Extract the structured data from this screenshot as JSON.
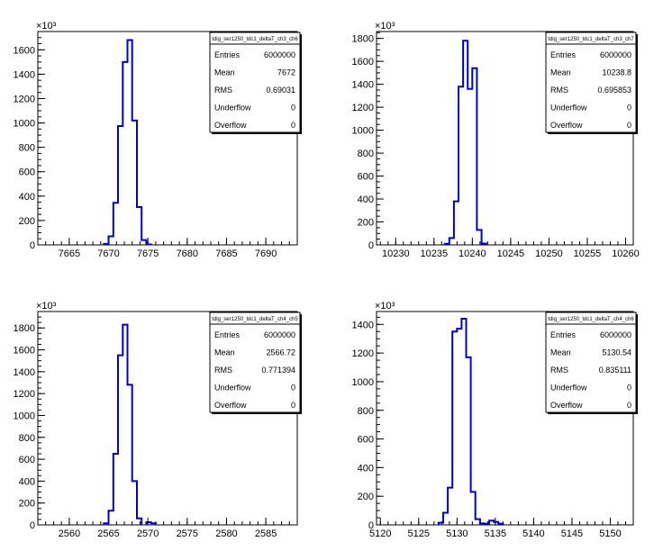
{
  "chart_data": [
    {
      "type": "bar",
      "title": "tdig_ser1250_tdc1_deltaT_ch3_ch6",
      "xlim": [
        7661,
        7694
      ],
      "ylim": [
        0,
        1750
      ],
      "y_exponent": "×10³",
      "xticks": [
        "7665",
        "7670",
        "7675",
        "7680",
        "7685",
        "7690"
      ],
      "yticks": [
        "0",
        "200",
        "400",
        "600",
        "800",
        "1000",
        "1200",
        "1400",
        "1600"
      ],
      "bins": [
        [
          7669.4,
          8
        ],
        [
          7670.0,
          70
        ],
        [
          7670.6,
          345
        ],
        [
          7671.2,
          975
        ],
        [
          7671.8,
          1500
        ],
        [
          7672.4,
          1680
        ],
        [
          7673.0,
          1020
        ],
        [
          7673.6,
          310
        ],
        [
          7674.2,
          40
        ],
        [
          7674.8,
          4
        ]
      ],
      "stats": {
        "Entries": "6000000",
        "Mean": "7672",
        "RMS": "0.69031",
        "Underflow": "0",
        "Overflow": "0"
      }
    },
    {
      "type": "bar",
      "title": "tdig_ser1250_tdc1_deltaT_ch3_ch7",
      "xlim": [
        10227.5,
        10261
      ],
      "ylim": [
        0,
        1860
      ],
      "y_exponent": "×10³",
      "xticks": [
        "10230",
        "10235",
        "10240",
        "10245",
        "10250",
        "10255",
        "10260"
      ],
      "yticks": [
        "0",
        "200",
        "400",
        "600",
        "800",
        "1000",
        "1200",
        "1400",
        "1600",
        "1800"
      ],
      "bins": [
        [
          10236.4,
          10
        ],
        [
          10237.0,
          60
        ],
        [
          10237.6,
          380
        ],
        [
          10238.2,
          1380
        ],
        [
          10238.8,
          1780
        ],
        [
          10239.4,
          1360
        ],
        [
          10240.0,
          1540
        ],
        [
          10240.6,
          130
        ],
        [
          10241.2,
          12
        ]
      ],
      "stats": {
        "Entries": "6000000",
        "Mean": "10238.8",
        "RMS": "0.695853",
        "Underflow": "0",
        "Overflow": "0"
      }
    },
    {
      "type": "bar",
      "title": "tdig_ser1250_tdc1_deltaT_ch4_ch5",
      "xlim": [
        2556,
        2589
      ],
      "ylim": [
        0,
        1950
      ],
      "y_exponent": "×10³",
      "xticks": [
        "2560",
        "2565",
        "2570",
        "2575",
        "2580",
        "2585"
      ],
      "yticks": [
        "0",
        "200",
        "400",
        "600",
        "800",
        "1000",
        "1200",
        "1400",
        "1600",
        "1800"
      ],
      "bins": [
        [
          2564.4,
          15
        ],
        [
          2565.0,
          130
        ],
        [
          2565.6,
          650
        ],
        [
          2566.2,
          1550
        ],
        [
          2566.8,
          1830
        ],
        [
          2567.4,
          1280
        ],
        [
          2568.0,
          400
        ],
        [
          2568.6,
          60
        ],
        [
          2569.8,
          25
        ],
        [
          2570.4,
          15
        ]
      ],
      "stats": {
        "Entries": "6000000",
        "Mean": "2566.72",
        "RMS": "0.771394",
        "Underflow": "0",
        "Overflow": "0"
      }
    },
    {
      "type": "bar",
      "title": "tdig_ser1250_tdc1_deltaT_ch4_ch6",
      "xlim": [
        5119.5,
        5153
      ],
      "ylim": [
        0,
        1490
      ],
      "y_exponent": "×10³",
      "xticks": [
        "5120",
        "5125",
        "5130",
        "5135",
        "5140",
        "5145",
        "5150"
      ],
      "yticks": [
        "0",
        "200",
        "400",
        "600",
        "800",
        "1000",
        "1200",
        "1400"
      ],
      "bins": [
        [
          5127.6,
          15
        ],
        [
          5128.2,
          85
        ],
        [
          5128.8,
          260
        ],
        [
          5129.4,
          1350
        ],
        [
          5130.0,
          1370
        ],
        [
          5130.6,
          1440
        ],
        [
          5131.2,
          1170
        ],
        [
          5131.8,
          230
        ],
        [
          5132.4,
          40
        ],
        [
          5133.0,
          10
        ],
        [
          5133.6,
          8
        ],
        [
          5134.2,
          30
        ],
        [
          5134.8,
          20
        ],
        [
          5135.4,
          8
        ]
      ],
      "stats": {
        "Entries": "6000000",
        "Mean": "5130.54",
        "RMS": "0.835111",
        "Underflow": "0",
        "Overflow": "0"
      }
    }
  ],
  "stat_labels": [
    "Entries",
    "Mean",
    "RMS",
    "Underflow",
    "Overflow"
  ],
  "line_color": "#0000cc"
}
